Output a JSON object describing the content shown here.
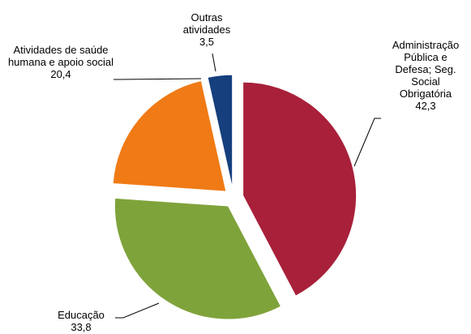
{
  "chart_data": {
    "type": "pie",
    "categories": [
      "Administração Pública e Defesa; Seg. Social Obrigatória",
      "Educação",
      "Atividades de saúde humana e apoio social",
      "Outras atividades"
    ],
    "values": [
      42.3,
      33.8,
      20.4,
      3.5
    ],
    "value_labels": [
      "42,3",
      "33,8",
      "20,4",
      "3,5"
    ],
    "colors": [
      "#a8203a",
      "#7fa33b",
      "#f07a15",
      "#153f7d"
    ]
  }
}
